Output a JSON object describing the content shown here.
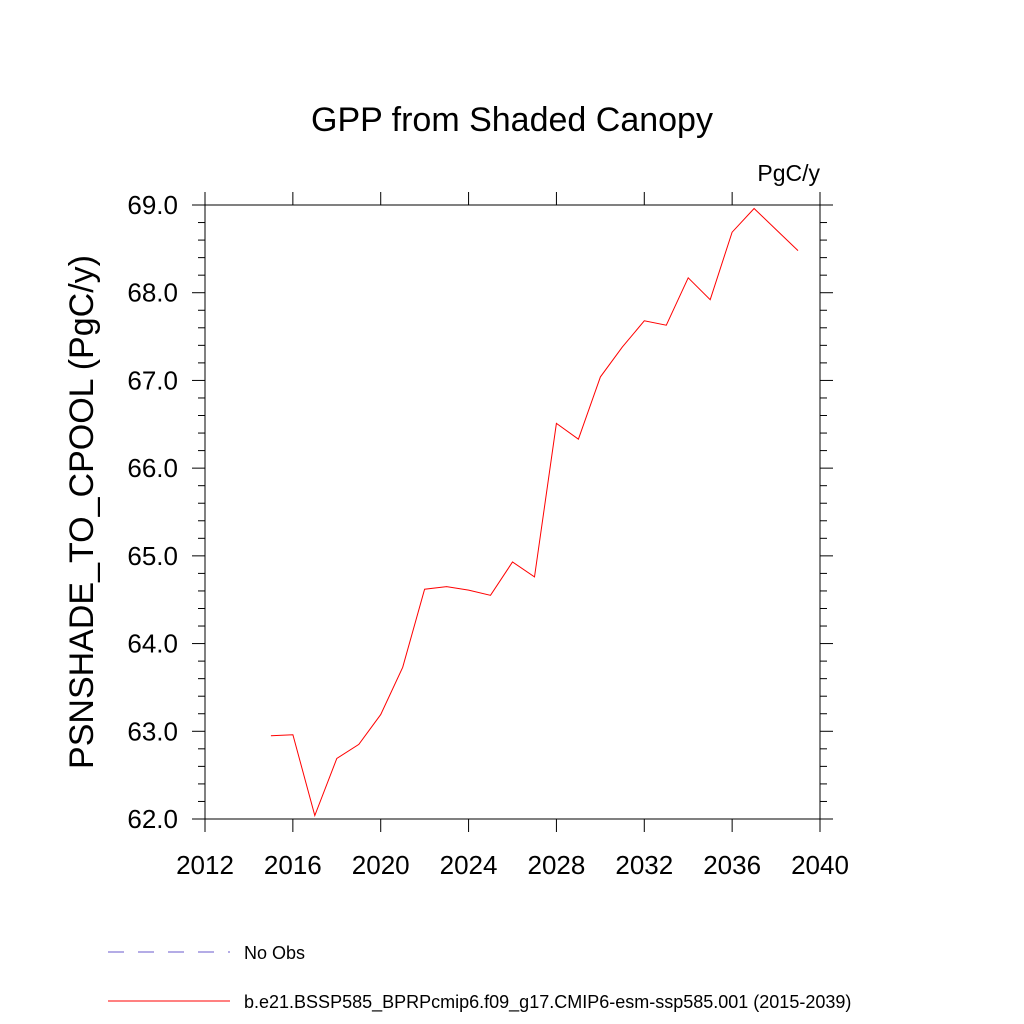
{
  "chart_data": {
    "type": "line",
    "title": "GPP from Shaded Canopy",
    "units_label": "PgC/y",
    "ylabel": "PSNSHADE_TO_CPOOL  (PgC/y)",
    "xlabel": "",
    "xlim": [
      2012,
      2040
    ],
    "ylim": [
      62.0,
      69.0
    ],
    "x_ticks": [
      2012,
      2016,
      2020,
      2024,
      2028,
      2032,
      2036,
      2040
    ],
    "x_tick_labels": [
      "2012",
      "2016",
      "2020",
      "2024",
      "2028",
      "2032",
      "2036",
      "2040"
    ],
    "y_ticks": [
      62.0,
      63.0,
      64.0,
      65.0,
      66.0,
      67.0,
      68.0,
      69.0
    ],
    "y_tick_labels": [
      "62.0",
      "63.0",
      "64.0",
      "65.0",
      "66.0",
      "67.0",
      "68.0",
      "69.0"
    ],
    "grid": false,
    "legend_position": "bottom",
    "series": [
      {
        "name": "b.e21.BSSP585_BPRPcmip6.f09_g17.CMIP6-esm-ssp585.001 (2015-2039)",
        "color": "#ff0000",
        "dash": "solid",
        "x": [
          2015,
          2016,
          2017,
          2018,
          2019,
          2020,
          2021,
          2022,
          2023,
          2024,
          2025,
          2026,
          2027,
          2028,
          2029,
          2030,
          2031,
          2032,
          2033,
          2034,
          2035,
          2036,
          2037,
          2038,
          2039
        ],
        "values": [
          62.95,
          62.96,
          62.04,
          62.69,
          62.85,
          63.19,
          63.73,
          64.62,
          64.65,
          64.61,
          64.55,
          64.93,
          64.76,
          66.51,
          66.33,
          67.04,
          67.38,
          67.68,
          67.63,
          68.17,
          67.92,
          68.69,
          68.96,
          68.72,
          68.48
        ]
      }
    ],
    "legend": [
      {
        "label": "No Obs",
        "color": "#6a5acd",
        "dash": "dashed"
      },
      {
        "label": "b.e21.BSSP585_BPRPcmip6.f09_g17.CMIP6-esm-ssp585.001 (2015-2039)",
        "color": "#ff0000",
        "dash": "solid"
      }
    ]
  }
}
